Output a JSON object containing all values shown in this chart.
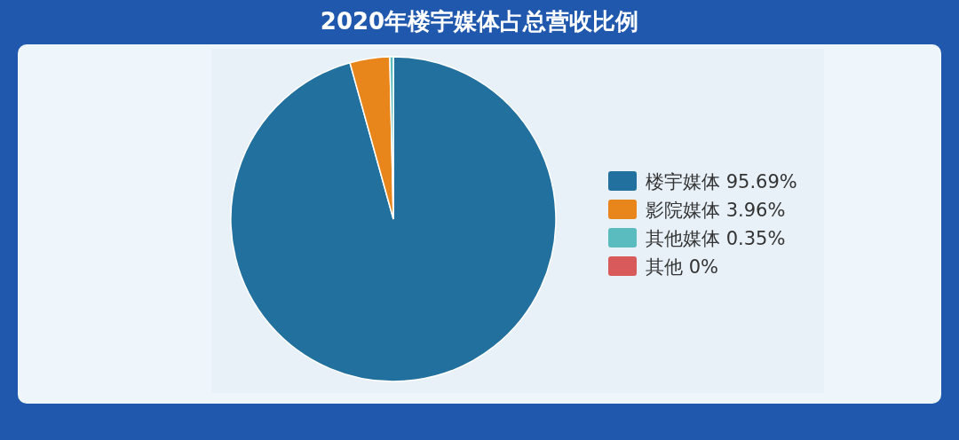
{
  "chart_data": {
    "type": "pie",
    "title": "2020年楼宇媒体占总营收比例",
    "categories": [
      "楼宇媒体",
      "影院媒体",
      "其他媒体",
      "其他"
    ],
    "values": [
      95.69,
      3.96,
      0.35,
      0
    ],
    "value_labels": [
      "95.69%",
      "3.96%",
      "0.35%",
      "0%"
    ],
    "colors": [
      "#22709e",
      "#e8861c",
      "#5bbcbf",
      "#d85a5a"
    ],
    "legend": "right"
  }
}
